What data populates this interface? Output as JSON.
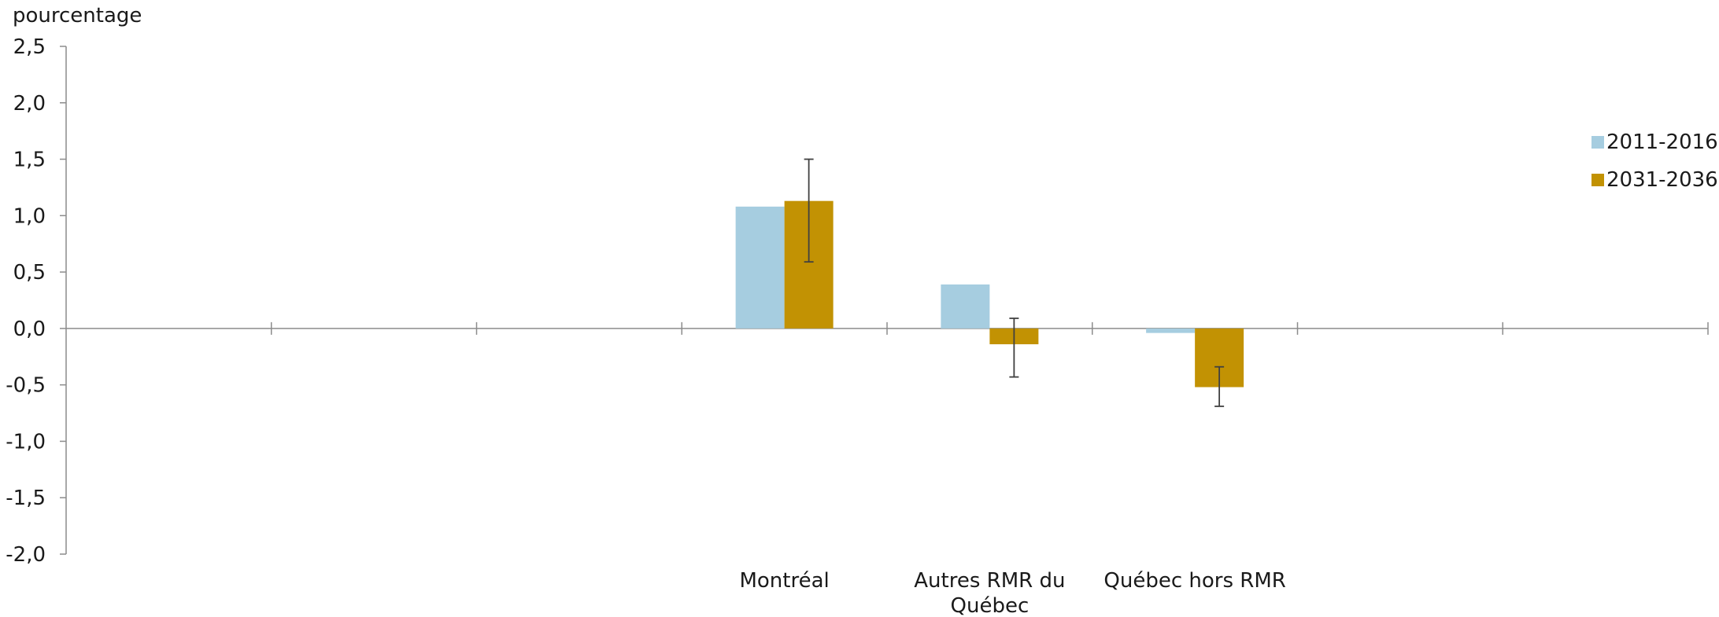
{
  "chart_data": {
    "type": "bar",
    "title": "",
    "ylabel": "pourcentage",
    "xlabel": "",
    "ylim": [
      -2.0,
      2.5
    ],
    "yticks": [
      2.5,
      2.0,
      1.5,
      1.0,
      0.5,
      0.0,
      -0.5,
      -1.0,
      -1.5,
      -2.0
    ],
    "ytick_labels": [
      "2,5",
      "2,0",
      "1,5",
      "1,0",
      "0,5",
      "0,0",
      "-0,5",
      "-1,0",
      "-1,5",
      "-2,0"
    ],
    "categories": [
      "",
      "",
      "",
      "Montréal",
      "Autres RMR du Québec",
      "Québec hors RMR",
      "",
      ""
    ],
    "series": [
      {
        "name": "2011-2016",
        "color": "#a6cde0",
        "values": [
          null,
          null,
          null,
          1.08,
          0.39,
          -0.04,
          null,
          null
        ]
      },
      {
        "name": "2031-2036",
        "color": "#c29203",
        "values": [
          null,
          null,
          null,
          1.13,
          -0.14,
          -0.52,
          null,
          null
        ],
        "error_low": [
          null,
          null,
          null,
          0.59,
          -0.43,
          -0.69,
          null,
          null
        ],
        "error_high": [
          null,
          null,
          null,
          1.5,
          0.09,
          -0.34,
          null,
          null
        ]
      }
    ],
    "legend_position": "right",
    "grid": false
  }
}
